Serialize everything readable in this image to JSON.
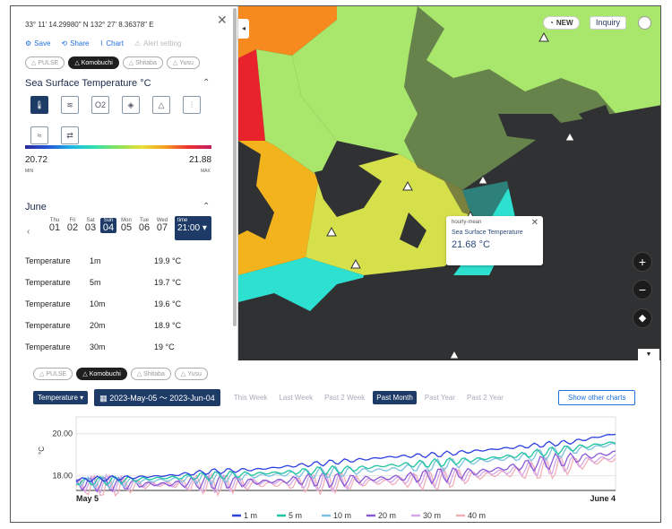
{
  "panel": {
    "coords": "33° 11' 14.29980\" N 132° 27' 8.36378\" E",
    "actions": {
      "save": "Save",
      "share": "Share",
      "chart": "Chart",
      "alert": "Alert setting"
    },
    "stations": [
      "PULSE",
      "Komobuchi",
      "Shitaba",
      "Yusu"
    ],
    "param_title": "Sea Surface Temperature  °C",
    "scale_min": "20.72",
    "scale_max": "21.88",
    "scale_min_label": "MIN",
    "scale_max_label": "MAX",
    "month": "June",
    "days": [
      {
        "w": "Thu",
        "n": "01"
      },
      {
        "w": "Fri",
        "n": "02"
      },
      {
        "w": "Sat",
        "n": "03"
      },
      {
        "w": "Sun",
        "n": "04"
      },
      {
        "w": "Mon",
        "n": "05"
      },
      {
        "w": "Tue",
        "n": "06"
      },
      {
        "w": "Wed",
        "n": "07"
      }
    ],
    "time_label": "time",
    "time_value": "21:00",
    "rows": [
      {
        "name": "Temperature",
        "depth": "1m",
        "value": "19.9 °C"
      },
      {
        "name": "Temperature",
        "depth": "5m",
        "value": "19.7 °C"
      },
      {
        "name": "Temperature",
        "depth": "10m",
        "value": "19.6 °C"
      },
      {
        "name": "Temperature",
        "depth": "20m",
        "value": "18.9 °C"
      },
      {
        "name": "Temperature",
        "depth": "30m",
        "value": "19 °C"
      }
    ]
  },
  "map": {
    "new_badge": "NEW",
    "inquiry": "Inquiry",
    "popup": {
      "kind": "hourly-mean",
      "param": "Sea Surface Temperature",
      "value": "21.68 °C"
    },
    "zoom_in": "+",
    "zoom_out": "−"
  },
  "bottom": {
    "stations": [
      "PULSE",
      "Komobuchi",
      "Shitaba",
      "Yusu"
    ],
    "param_dropdown": "Temperature",
    "date_range": "2023-May-05  ～  2023-Jun-04",
    "periods": [
      "This Week",
      "Last Week",
      "Past 2 Week",
      "Past Month",
      "Past Year",
      "Past 2 Year"
    ],
    "other_charts": "Show other charts"
  },
  "chart_data": {
    "type": "line",
    "title": "",
    "ylabel": "°C",
    "xlabel": "",
    "ylim": [
      17.3,
      20.8
    ],
    "yticks": [
      "20.00",
      "18.00"
    ],
    "x_labels": [
      "May 5",
      "June 4"
    ],
    "series": [
      {
        "name": "1 m",
        "color": "#2d3fe0",
        "values": [
          17.8,
          17.9,
          18.0,
          18.2,
          18.3,
          18.5,
          18.7,
          18.9,
          19.0,
          19.2,
          19.4,
          19.6,
          20.0
        ]
      },
      {
        "name": "5 m",
        "color": "#1fc4a0",
        "values": [
          17.7,
          17.8,
          17.9,
          18.0,
          18.1,
          18.2,
          18.3,
          18.5,
          18.6,
          18.8,
          19.0,
          19.3,
          19.6
        ]
      },
      {
        "name": "10 m",
        "color": "#7cc0e0",
        "values": [
          17.7,
          17.7,
          17.8,
          17.9,
          18.0,
          18.1,
          18.2,
          18.3,
          18.5,
          18.7,
          18.9,
          19.2,
          19.5
        ]
      },
      {
        "name": "20 m",
        "color": "#8a5ad6",
        "values": [
          17.6,
          17.6,
          17.6,
          17.7,
          17.7,
          17.8,
          17.8,
          17.9,
          18.0,
          18.2,
          18.5,
          18.8,
          19.1
        ]
      },
      {
        "name": "30 m",
        "color": "#d6a6e6",
        "values": [
          17.6,
          17.6,
          17.6,
          17.6,
          17.7,
          17.7,
          17.7,
          17.8,
          17.9,
          18.1,
          18.3,
          18.6,
          18.9
        ]
      },
      {
        "name": "40 m",
        "color": "#f0b0b8",
        "values": [
          17.5,
          17.5,
          17.6,
          17.6,
          17.6,
          17.6,
          17.7,
          17.7,
          17.8,
          18.0,
          18.2,
          18.5,
          18.8
        ]
      }
    ]
  }
}
